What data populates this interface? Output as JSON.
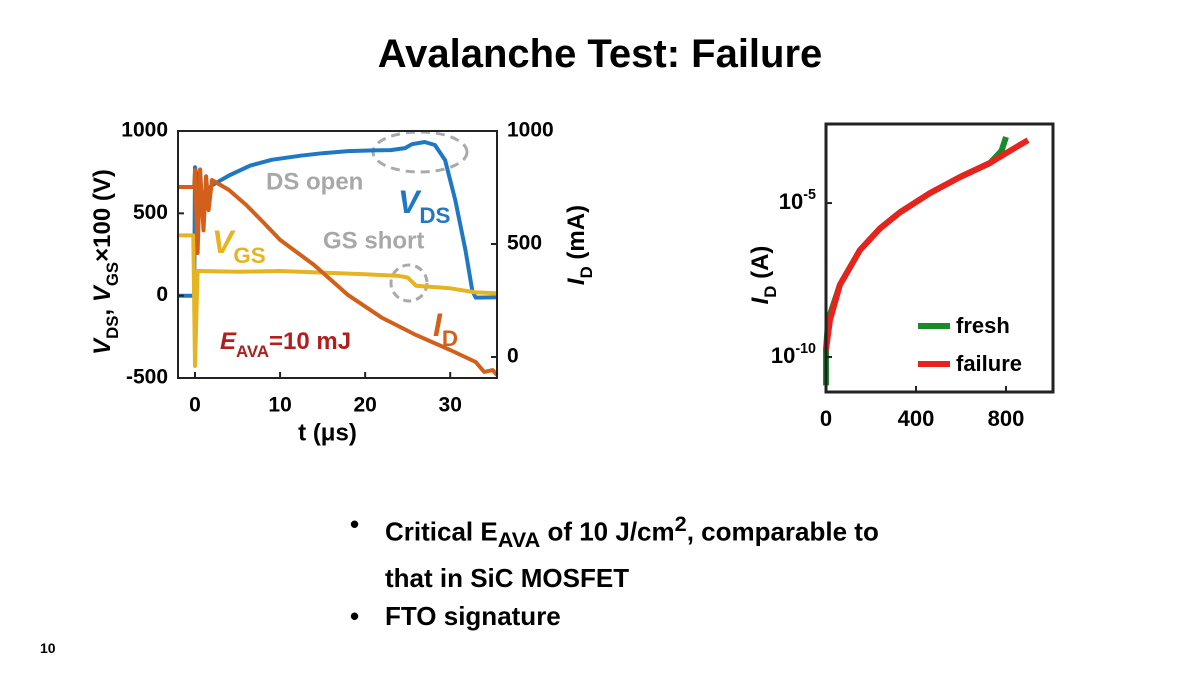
{
  "title": "Avalanche Test: Failure",
  "chart_data": [
    {
      "type": "line",
      "xlabel": "t (μs)",
      "ylabel": [
        "V",
        "DS",
        ", ",
        "V",
        "GS",
        "×100 (V)"
      ],
      "y2label": [
        "I",
        "D",
        " (mA)"
      ],
      "xlim": [
        -2,
        35.5
      ],
      "xticks": [
        0,
        10,
        20,
        30
      ],
      "ylim": [
        -500,
        1000
      ],
      "yticks": [
        -500,
        0,
        500,
        1000
      ],
      "y2lim": [
        -93,
        1000
      ],
      "y2ticks": [
        0,
        500,
        1000
      ],
      "annotations": [
        "DS open",
        "GS short"
      ],
      "energy_label": [
        "E",
        "AVA",
        "=10 mJ"
      ],
      "series": [
        {
          "name": "VDS",
          "color": "#1f78c1",
          "x": [
            -2,
            -0.1,
            0,
            0.5,
            1,
            2,
            4,
            6.5,
            9,
            12.4,
            15,
            18,
            21,
            23,
            24.7,
            25.5,
            27,
            28.2,
            29.4,
            30.6,
            31.8,
            32.6,
            33,
            35.5
          ],
          "values": [
            0,
            0,
            780,
            640,
            620,
            670,
            730,
            790,
            825,
            850,
            865,
            878,
            882,
            884,
            896,
            920,
            933,
            915,
            823,
            580,
            275,
            30,
            -12,
            -10
          ]
        },
        {
          "name": "VGS",
          "color": "#e6b422",
          "x": [
            -2,
            -0.2,
            0,
            0.3,
            0.6,
            5,
            10,
            20,
            24,
            25,
            26,
            30,
            33,
            35.5
          ],
          "values": [
            366,
            366,
            -427,
            150,
            150,
            145,
            150,
            130,
            120,
            110,
            60,
            45,
            20,
            15
          ]
        },
        {
          "name": "ID",
          "color": "#d2601a",
          "axis": "y2",
          "x": [
            -2,
            -0.1,
            0,
            0.3,
            0.6,
            1,
            1.3,
            1.6,
            2,
            4,
            6,
            8,
            10,
            14,
            18,
            22,
            26,
            30,
            33,
            34,
            35,
            35.5
          ],
          "values": [
            752,
            752,
            827,
            460,
            830,
            560,
            800,
            650,
            783,
            739,
            673,
            597,
            518,
            407,
            274,
            173,
            97,
            31,
            -22,
            -66,
            -58,
            -80
          ]
        }
      ]
    },
    {
      "type": "line",
      "log_y": true,
      "ylabel": [
        "I",
        "D",
        " (A)"
      ],
      "xlim": [
        0,
        1009
      ],
      "xticks": [
        0,
        400,
        800
      ],
      "ylim": [
        7.3e-12,
        0.0037
      ],
      "yticks": [
        {
          "value": 1e-10,
          "label": "10-10"
        },
        {
          "value": 1e-05,
          "label": "10-5"
        }
      ],
      "legend": "lower right",
      "series": [
        {
          "name": "fresh",
          "color": "#1a8a2a",
          "x": [
            0,
            0,
            10,
            62,
            151,
            240,
            329,
            462,
            596,
            729,
            780,
            800
          ],
          "values": [
            1.2e-11,
            1.7e-10,
            1.6e-09,
            2.2e-08,
            3e-07,
            1.5e-06,
            5e-06,
            2.1e-05,
            7e-05,
            0.0002,
            0.0005,
            0.0014
          ]
        },
        {
          "name": "failure",
          "color": "#e8231e",
          "x": [
            0,
            18,
            62,
            151,
            240,
            329,
            462,
            596,
            729,
            818,
            898
          ],
          "values": [
            1.7e-10,
            1.6e-09,
            2.2e-08,
            3e-07,
            1.5e-06,
            5e-06,
            2.1e-05,
            7e-05,
            0.0002,
            0.0005,
            0.0011
          ]
        }
      ]
    }
  ],
  "bullets": [
    [
      "Critical E",
      "AVA",
      " of 10 J/cm",
      "2",
      ", comparable to",
      "that in SiC MOSFET"
    ],
    [
      "FTO signature"
    ]
  ],
  "page_number": "10"
}
